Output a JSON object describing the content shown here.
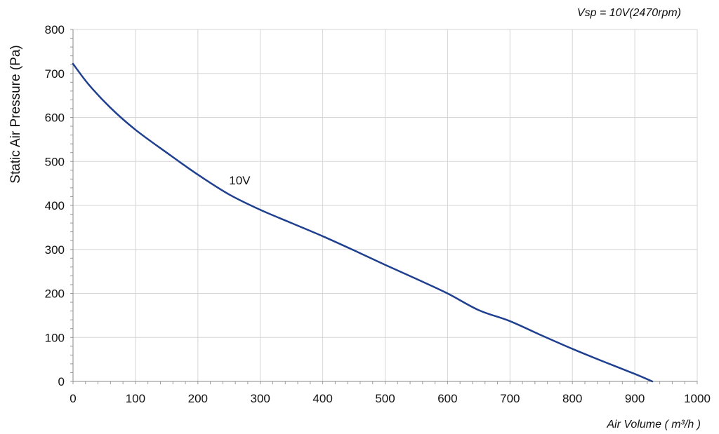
{
  "chart_data": {
    "type": "line",
    "title": "",
    "annotation": "Vsp = 10V(2470rpm)",
    "xlabel": "Air Volume ( m³/h )",
    "ylabel": "Static Air Pressure  (Pa)",
    "xlim": [
      0,
      1000
    ],
    "ylim": [
      0,
      800
    ],
    "x_ticks": [
      "0",
      "100",
      "200",
      "300",
      "400",
      "500",
      "600",
      "700",
      "800",
      "900",
      "1000"
    ],
    "y_ticks": [
      "0",
      "100",
      "200",
      "300",
      "400",
      "500",
      "600",
      "700",
      "800"
    ],
    "grid": true,
    "line_color": "#1f3f8f",
    "series": [
      {
        "name": "10V",
        "x": [
          0,
          25,
          60,
          100,
          150,
          200,
          250,
          300,
          350,
          400,
          450,
          500,
          550,
          600,
          650,
          700,
          750,
          800,
          850,
          900,
          928
        ],
        "y": [
          722,
          675,
          622,
          572,
          520,
          470,
          425,
          390,
          360,
          330,
          298,
          265,
          233,
          200,
          162,
          137,
          105,
          74,
          45,
          17,
          0
        ]
      }
    ],
    "series_label_at": [
      250,
      448
    ]
  }
}
